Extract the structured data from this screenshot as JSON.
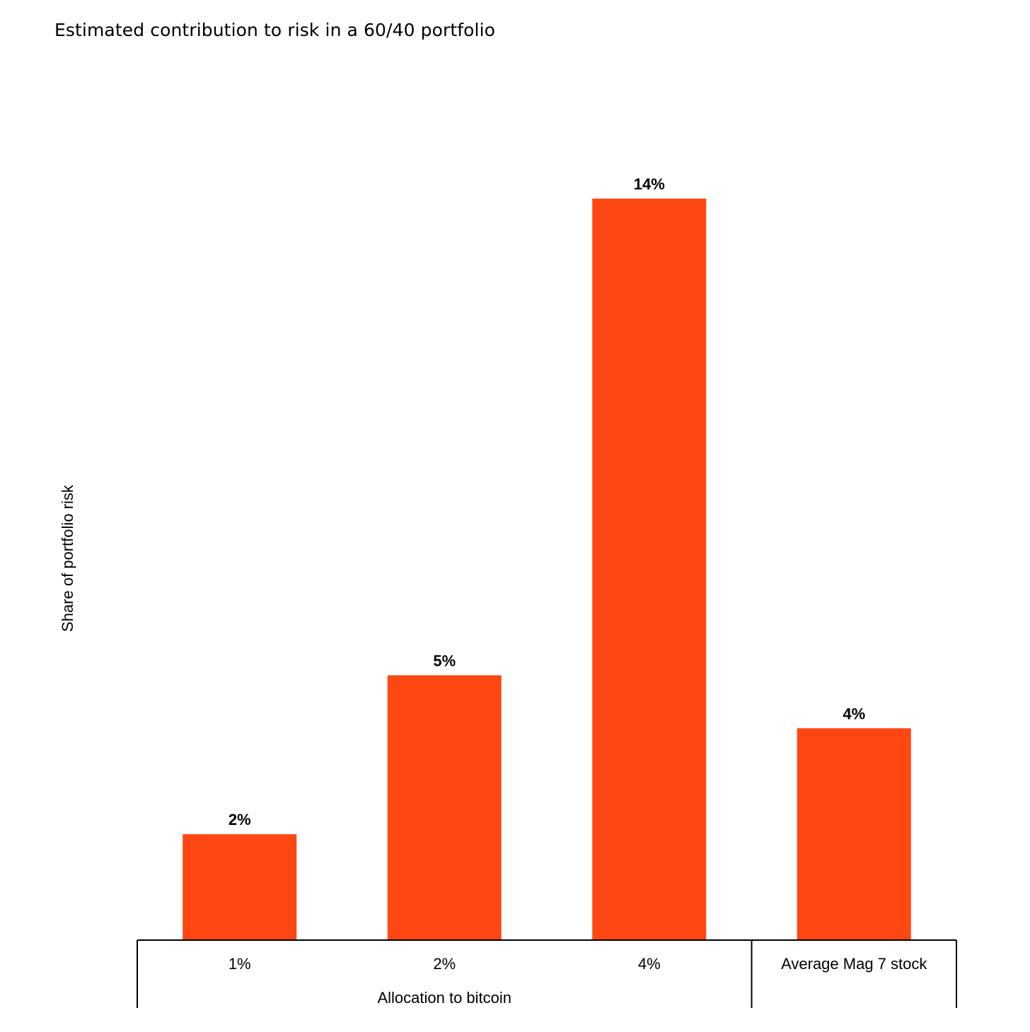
{
  "chart_data": {
    "type": "bar",
    "title": "Estimated contribution to risk in a 60/40 portfolio",
    "ylabel": "Share of portfolio risk",
    "xlabel": "Allocation to bitcoin",
    "categories": [
      "1%",
      "2%",
      "4%",
      "Average Mag 7 stock"
    ],
    "values": [
      2,
      5,
      14,
      4
    ],
    "data_labels": [
      "2%",
      "5%",
      "14%",
      "4%"
    ],
    "groups": [
      {
        "label": "Allocation to bitcoin",
        "categories": [
          "1%",
          "2%",
          "4%"
        ]
      },
      {
        "label": "",
        "categories": [
          "Average Mag 7 stock"
        ]
      }
    ],
    "ylim": [
      0,
      14
    ],
    "grid": false,
    "bar_color": "#ff4713"
  }
}
